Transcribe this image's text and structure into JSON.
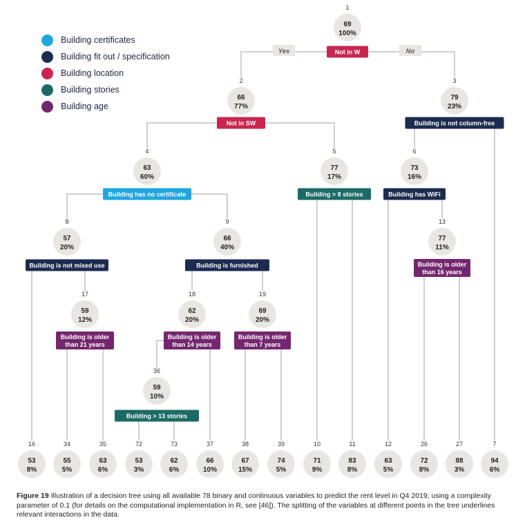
{
  "colors": {
    "certificates": "#1ea6df",
    "fitout": "#1c2b4e",
    "location": "#c8264f",
    "stories": "#1c6a66",
    "age": "#74276e",
    "node_fill": "#e7e6e3",
    "line": "#cfcfcf",
    "yesno_fill": "#e7e6e3"
  },
  "legend": [
    {
      "label": "Building certificates",
      "color_key": "certificates"
    },
    {
      "label": "Building fit out / specification",
      "color_key": "fitout"
    },
    {
      "label": "Building location",
      "color_key": "location"
    },
    {
      "label": "Building stories",
      "color_key": "stories"
    },
    {
      "label": "Building age",
      "color_key": "age"
    }
  ],
  "branch_labels": {
    "yes": "Yes",
    "no": "No"
  },
  "nodes": [
    {
      "id": "1",
      "value": "69",
      "share": "100%"
    },
    {
      "id": "2",
      "value": "66",
      "share": "77%"
    },
    {
      "id": "3",
      "value": "79",
      "share": "23%"
    },
    {
      "id": "4",
      "value": "63",
      "share": "60%"
    },
    {
      "id": "5",
      "value": "77",
      "share": "17%"
    },
    {
      "id": "6",
      "value": "73",
      "share": "16%"
    },
    {
      "id": "8",
      "value": "57",
      "share": "20%"
    },
    {
      "id": "9",
      "value": "66",
      "share": "40%"
    },
    {
      "id": "13",
      "value": "77",
      "share": "11%"
    },
    {
      "id": "17",
      "value": "59",
      "share": "12%"
    },
    {
      "id": "18",
      "value": "62",
      "share": "20%"
    },
    {
      "id": "19",
      "value": "69",
      "share": "20%"
    },
    {
      "id": "36",
      "value": "59",
      "share": "10%"
    },
    {
      "id": "16",
      "value": "53",
      "share": "8%"
    },
    {
      "id": "34",
      "value": "55",
      "share": "5%"
    },
    {
      "id": "35",
      "value": "63",
      "share": "6%"
    },
    {
      "id": "72",
      "value": "53",
      "share": "3%"
    },
    {
      "id": "73",
      "value": "62",
      "share": "6%"
    },
    {
      "id": "37",
      "value": "66",
      "share": "10%"
    },
    {
      "id": "38",
      "value": "67",
      "share": "15%"
    },
    {
      "id": "39",
      "value": "74",
      "share": "5%"
    },
    {
      "id": "10",
      "value": "71",
      "share": "9%"
    },
    {
      "id": "11",
      "value": "83",
      "share": "8%"
    },
    {
      "id": "12",
      "value": "63",
      "share": "5%"
    },
    {
      "id": "26",
      "value": "72",
      "share": "8%"
    },
    {
      "id": "27",
      "value": "88",
      "share": "3%"
    },
    {
      "id": "7",
      "value": "94",
      "share": "6%"
    }
  ],
  "splits": [
    {
      "node": "1",
      "lines": [
        "Not in W"
      ],
      "color_key": "location"
    },
    {
      "node": "2",
      "lines": [
        "Not in SW"
      ],
      "color_key": "location"
    },
    {
      "node": "3",
      "lines": [
        "Building is not column-free"
      ],
      "color_key": "fitout"
    },
    {
      "node": "4",
      "lines": [
        "Building has no certificate"
      ],
      "color_key": "certificates"
    },
    {
      "node": "5",
      "lines": [
        "Building > 8 stories"
      ],
      "color_key": "stories"
    },
    {
      "node": "6",
      "lines": [
        "Building has WiFi"
      ],
      "color_key": "fitout"
    },
    {
      "node": "8",
      "lines": [
        "Building is not mixed use"
      ],
      "color_key": "fitout"
    },
    {
      "node": "9",
      "lines": [
        "Building is furnished"
      ],
      "color_key": "fitout"
    },
    {
      "node": "13",
      "lines": [
        "Building is older",
        "than 16 years"
      ],
      "color_key": "age"
    },
    {
      "node": "17",
      "lines": [
        "Building is older",
        "than 21 years"
      ],
      "color_key": "age"
    },
    {
      "node": "18",
      "lines": [
        "Building is older",
        "than 14 years"
      ],
      "color_key": "age"
    },
    {
      "node": "19",
      "lines": [
        "Building is older",
        "than 7 years"
      ],
      "color_key": "age"
    },
    {
      "node": "36",
      "lines": [
        "Building > 13 stories"
      ],
      "color_key": "stories"
    }
  ],
  "caption": {
    "prefix": "Figure 19",
    "text": " Illustration of a decision tree using all available 78 binary and continuous variables to predict the rent level in Q4 2019, using a complexity parameter of 0.1 (for details on the computational implementation in R, see [46]). The splitting of the variables at different points in the tree underlines relevant interactions in the data."
  }
}
